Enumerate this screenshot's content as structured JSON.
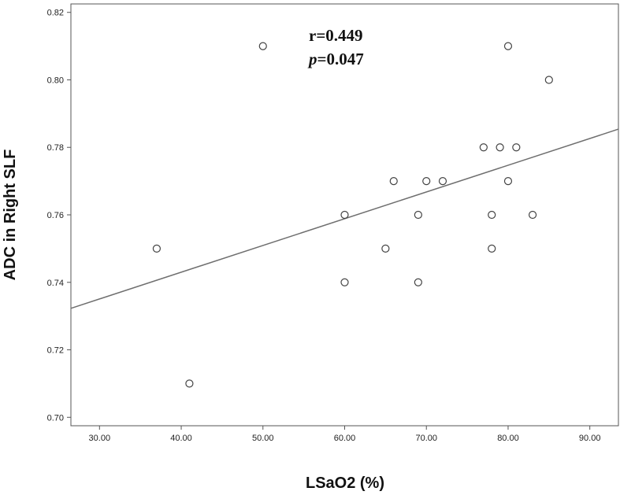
{
  "chart_data": {
    "type": "scatter",
    "xlabel": "LSaO2 (%)",
    "ylabel": "ADC in Right SLF",
    "xlim": [
      26.5,
      93.5
    ],
    "ylim": [
      0.6975,
      0.8225
    ],
    "xticks": [
      30,
      40,
      50,
      60,
      70,
      80,
      90
    ],
    "xtick_labels": [
      "30.00",
      "40.00",
      "50.00",
      "60.00",
      "70.00",
      "80.00",
      "90.00"
    ],
    "yticks": [
      0.7,
      0.72,
      0.74,
      0.76,
      0.78,
      0.8,
      0.82
    ],
    "ytick_labels": [
      "0.70",
      "0.72",
      "0.74",
      "0.76",
      "0.78",
      "0.80",
      "0.82"
    ],
    "grid": false,
    "points": [
      {
        "x": 37,
        "y": 0.75
      },
      {
        "x": 41,
        "y": 0.71
      },
      {
        "x": 50,
        "y": 0.81
      },
      {
        "x": 60,
        "y": 0.76
      },
      {
        "x": 60,
        "y": 0.74
      },
      {
        "x": 65,
        "y": 0.75
      },
      {
        "x": 66,
        "y": 0.77
      },
      {
        "x": 69,
        "y": 0.76
      },
      {
        "x": 69,
        "y": 0.74
      },
      {
        "x": 70,
        "y": 0.77
      },
      {
        "x": 72,
        "y": 0.77
      },
      {
        "x": 77,
        "y": 0.78
      },
      {
        "x": 78,
        "y": 0.76
      },
      {
        "x": 78,
        "y": 0.75
      },
      {
        "x": 79,
        "y": 0.78
      },
      {
        "x": 80,
        "y": 0.81
      },
      {
        "x": 80,
        "y": 0.77
      },
      {
        "x": 81,
        "y": 0.78
      },
      {
        "x": 83,
        "y": 0.76
      },
      {
        "x": 85,
        "y": 0.8
      }
    ],
    "fit_line": {
      "x": [
        26.5,
        93.5
      ],
      "y": [
        0.7323,
        0.7854
      ]
    },
    "annotations": {
      "r_text": "r=0.449",
      "p_symbol": "p",
      "p_value": "=0.047"
    },
    "colors": {
      "line": "#6e6e6e",
      "marker": "#444444",
      "axis": "#555555"
    }
  }
}
